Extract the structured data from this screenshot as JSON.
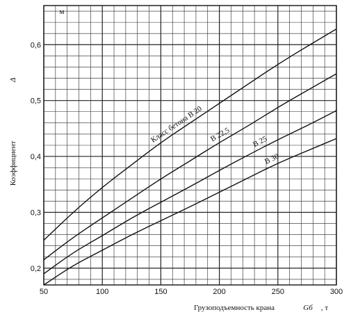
{
  "chart_data": {
    "type": "line",
    "xlabel": "Грузоподъемность крана",
    "xsymbol": "Gб",
    "xunit": ", т",
    "ylabel": "Коэффициент",
    "ysymbol": "Δ",
    "yunit": "м",
    "xlim": [
      50,
      300
    ],
    "ylim": [
      0.17,
      0.67
    ],
    "x_ticks": [
      50,
      100,
      150,
      200,
      250,
      300
    ],
    "x_tick_labels": [
      "50",
      "100",
      "150",
      "200",
      "250",
      "300"
    ],
    "y_ticks": [
      0.2,
      0.3,
      0.4,
      0.5,
      0.6
    ],
    "y_tick_labels": [
      "0,2",
      "0,3",
      "0,4",
      "0,5",
      "0,6"
    ],
    "grid": true,
    "series": [
      {
        "name": "Класс бетона B 20",
        "label": "Класс бетона B 20",
        "points": [
          [
            50,
            0.25
          ],
          [
            75,
            0.3
          ],
          [
            100,
            0.345
          ],
          [
            125,
            0.385
          ],
          [
            150,
            0.425
          ],
          [
            175,
            0.46
          ],
          [
            200,
            0.495
          ],
          [
            225,
            0.53
          ],
          [
            250,
            0.565
          ],
          [
            275,
            0.597
          ],
          [
            300,
            0.628
          ]
        ]
      },
      {
        "name": "B 22,5",
        "label": "B 22,5",
        "points": [
          [
            50,
            0.215
          ],
          [
            75,
            0.255
          ],
          [
            100,
            0.29
          ],
          [
            125,
            0.325
          ],
          [
            150,
            0.36
          ],
          [
            175,
            0.392
          ],
          [
            200,
            0.425
          ],
          [
            225,
            0.455
          ],
          [
            250,
            0.488
          ],
          [
            275,
            0.518
          ],
          [
            300,
            0.548
          ]
        ]
      },
      {
        "name": "B 25",
        "label": "B 25",
        "points": [
          [
            50,
            0.19
          ],
          [
            75,
            0.228
          ],
          [
            100,
            0.258
          ],
          [
            125,
            0.29
          ],
          [
            150,
            0.318
          ],
          [
            175,
            0.346
          ],
          [
            200,
            0.375
          ],
          [
            225,
            0.403
          ],
          [
            250,
            0.43
          ],
          [
            275,
            0.455
          ],
          [
            300,
            0.482
          ]
        ]
      },
      {
        "name": "B 30",
        "label": "B 30",
        "points": [
          [
            50,
            0.17
          ],
          [
            75,
            0.205
          ],
          [
            100,
            0.232
          ],
          [
            125,
            0.26
          ],
          [
            150,
            0.285
          ],
          [
            175,
            0.31
          ],
          [
            200,
            0.336
          ],
          [
            225,
            0.362
          ],
          [
            250,
            0.388
          ],
          [
            275,
            0.41
          ],
          [
            300,
            0.432
          ]
        ]
      }
    ]
  }
}
